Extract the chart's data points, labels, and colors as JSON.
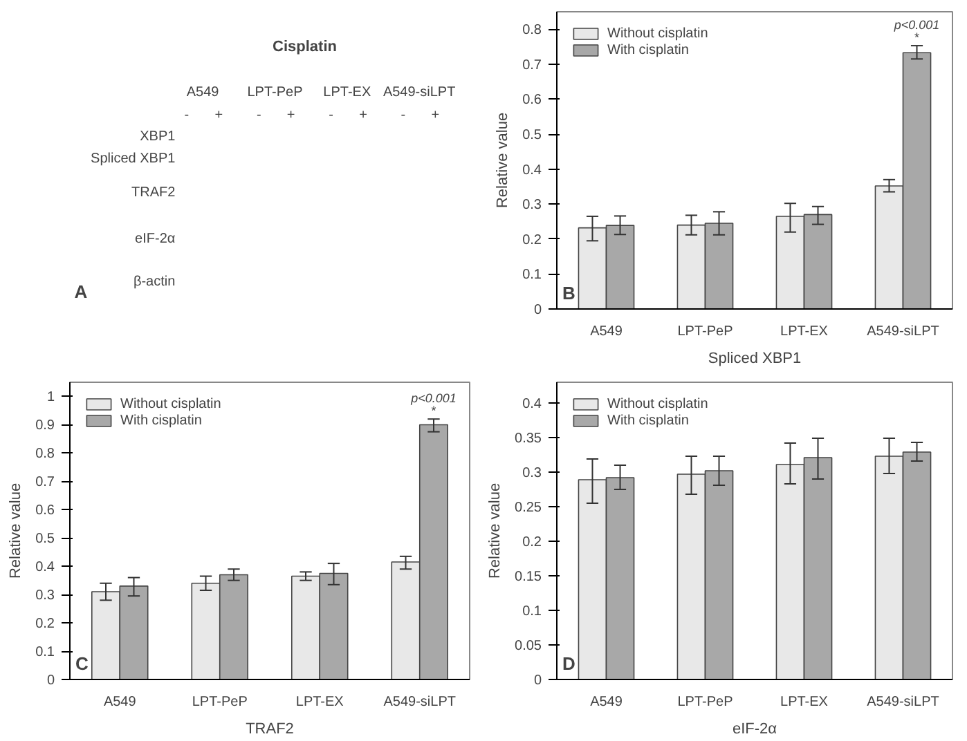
{
  "chart_data": [
    {
      "type": "other",
      "title": "Cisplatin",
      "categories": [
        "A549",
        "LPT-PeP",
        "LPT-EX",
        "A549-siLPT"
      ],
      "y_categories": [
        "XBP1",
        "Spliced XBP1",
        "TRAF2",
        "eIF-2α",
        "β-actin"
      ],
      "annotations": [
        "A",
        "-",
        "+",
        "-",
        "+",
        "-",
        "+",
        "-",
        "+"
      ]
    },
    {
      "type": "bar",
      "xlabel": "Spliced XBP1",
      "ylabel": "Relative value",
      "categories": [
        "A549",
        "LPT-PeP",
        "LPT-EX",
        "A549-siLPT"
      ],
      "ylim": [
        0,
        0.85
      ],
      "yticks": [
        0,
        0.1,
        0.2,
        0.3,
        0.4,
        0.5,
        0.6,
        0.7,
        0.8
      ],
      "grid": false,
      "legend": "top left",
      "series": [
        {
          "name": "Without cisplatin",
          "color": "#e8e8e8",
          "values": [
            0.232,
            0.24,
            0.265,
            0.352
          ],
          "errors": [
            [
              0.195,
              0.265
            ],
            [
              0.212,
              0.268
            ],
            [
              0.22,
              0.302
            ],
            [
              0.335,
              0.37
            ]
          ]
        },
        {
          "name": "With cisplatin",
          "color": "#a8a8a8",
          "values": [
            0.239,
            0.245,
            0.27,
            0.733
          ],
          "errors": [
            [
              0.213,
              0.266
            ],
            [
              0.212,
              0.278
            ],
            [
              0.242,
              0.293
            ],
            [
              0.715,
              0.753
            ]
          ]
        }
      ],
      "annotations": [
        "B",
        "p<0.001",
        "*"
      ]
    },
    {
      "type": "bar",
      "xlabel": "TRAF2",
      "ylabel": "Relative value",
      "categories": [
        "A549",
        "LPT-PeP",
        "LPT-EX",
        "A549-siLPT"
      ],
      "ylim": [
        0,
        1.05
      ],
      "yticks": [
        0,
        0.1,
        0.2,
        0.3,
        0.4,
        0.5,
        0.6,
        0.7,
        0.8,
        0.9,
        1
      ],
      "grid": false,
      "legend": "top left",
      "series": [
        {
          "name": "Without cisplatin",
          "color": "#e8e8e8",
          "values": [
            0.31,
            0.34,
            0.365,
            0.415
          ],
          "errors": [
            [
              0.28,
              0.34
            ],
            [
              0.315,
              0.365
            ],
            [
              0.35,
              0.38
            ],
            [
              0.39,
              0.435
            ]
          ]
        },
        {
          "name": "With cisplatin",
          "color": "#a8a8a8",
          "values": [
            0.33,
            0.37,
            0.375,
            0.9
          ],
          "errors": [
            [
              0.295,
              0.36
            ],
            [
              0.35,
              0.39
            ],
            [
              0.335,
              0.41
            ],
            [
              0.875,
              0.92
            ]
          ]
        }
      ],
      "annotations": [
        "C",
        "p<0.001",
        "*"
      ]
    },
    {
      "type": "bar",
      "xlabel": "eIF-2α",
      "ylabel": "Relative value",
      "categories": [
        "A549",
        "LPT-PeP",
        "LPT-EX",
        "A549-siLPT"
      ],
      "ylim": [
        0,
        0.43
      ],
      "yticks": [
        0,
        0.05,
        0.1,
        0.15,
        0.2,
        0.25,
        0.3,
        0.35,
        0.4
      ],
      "grid": false,
      "legend": "top left",
      "series": [
        {
          "name": "Without cisplatin",
          "color": "#e8e8e8",
          "values": [
            0.289,
            0.297,
            0.311,
            0.323
          ],
          "errors": [
            [
              0.255,
              0.319
            ],
            [
              0.268,
              0.323
            ],
            [
              0.283,
              0.342
            ],
            [
              0.298,
              0.349
            ]
          ]
        },
        {
          "name": "With cisplatin",
          "color": "#a8a8a8",
          "values": [
            0.292,
            0.302,
            0.321,
            0.329
          ],
          "errors": [
            [
              0.275,
              0.31
            ],
            [
              0.281,
              0.323
            ],
            [
              0.29,
              0.349
            ],
            [
              0.316,
              0.343
            ]
          ]
        }
      ],
      "annotations": [
        "D"
      ]
    }
  ]
}
